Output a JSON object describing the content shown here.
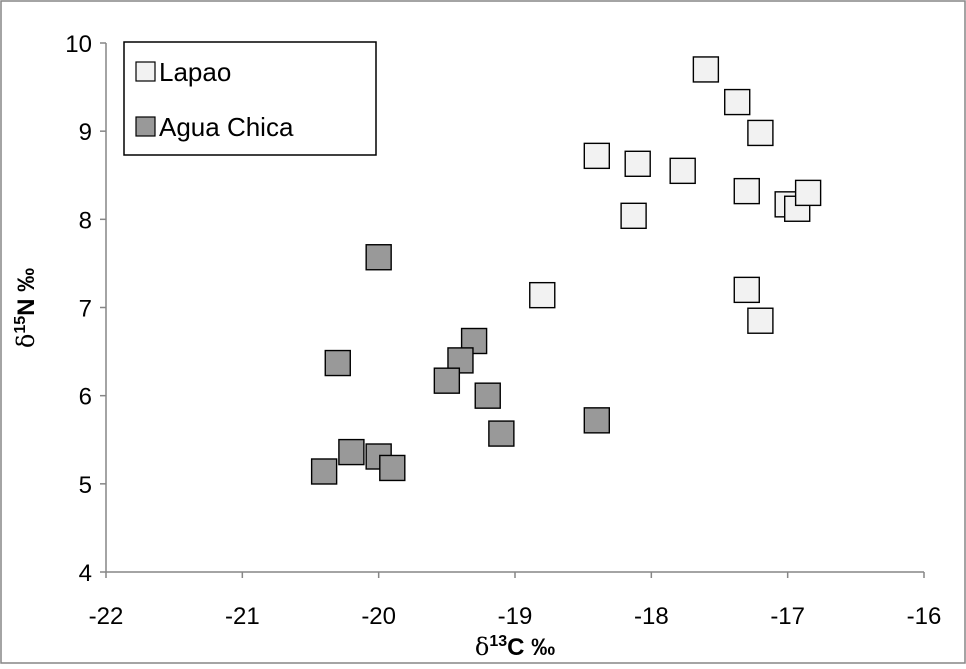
{
  "chart_data": {
    "type": "scatter",
    "title": "",
    "xlabel_symbol": "δ",
    "xlabel_sup": "13",
    "xlabel_rest": "C ‰",
    "ylabel_symbol": "δ",
    "ylabel_sup": "15",
    "ylabel_rest": "N ‰",
    "xlim": [
      -22,
      -16
    ],
    "ylim": [
      4,
      10
    ],
    "xticks": [
      -22,
      -21,
      -20,
      -19,
      -18,
      -17,
      -16
    ],
    "yticks": [
      4,
      5,
      6,
      7,
      8,
      9,
      10
    ],
    "grid": false,
    "legend_position": "top-left",
    "series": [
      {
        "name": "Lapao",
        "color": "#f2f2f2",
        "points": [
          {
            "x": -17.6,
            "y": 9.7
          },
          {
            "x": -17.37,
            "y": 9.33
          },
          {
            "x": -17.2,
            "y": 8.98
          },
          {
            "x": -18.4,
            "y": 8.72
          },
          {
            "x": -18.1,
            "y": 8.63
          },
          {
            "x": -17.77,
            "y": 8.55
          },
          {
            "x": -17.3,
            "y": 8.32
          },
          {
            "x": -18.13,
            "y": 8.04
          },
          {
            "x": -17.0,
            "y": 8.17
          },
          {
            "x": -16.93,
            "y": 8.12
          },
          {
            "x": -16.85,
            "y": 8.3
          },
          {
            "x": -18.8,
            "y": 7.14
          },
          {
            "x": -17.3,
            "y": 7.2
          },
          {
            "x": -17.2,
            "y": 6.85
          }
        ]
      },
      {
        "name": "Agua Chica",
        "color": "#999999",
        "points": [
          {
            "x": -20.0,
            "y": 7.57
          },
          {
            "x": -20.3,
            "y": 6.37
          },
          {
            "x": -19.3,
            "y": 6.62
          },
          {
            "x": -19.4,
            "y": 6.4
          },
          {
            "x": -19.5,
            "y": 6.17
          },
          {
            "x": -19.2,
            "y": 6.0
          },
          {
            "x": -19.1,
            "y": 5.57
          },
          {
            "x": -18.4,
            "y": 5.72
          },
          {
            "x": -20.2,
            "y": 5.36
          },
          {
            "x": -20.0,
            "y": 5.31
          },
          {
            "x": -19.9,
            "y": 5.18
          },
          {
            "x": -20.4,
            "y": 5.14
          }
        ]
      }
    ]
  }
}
